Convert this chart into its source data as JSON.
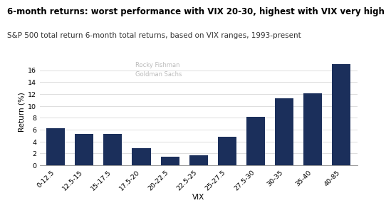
{
  "title": "6-month returns: worst performance with VIX 20-30, highest with VIX very high",
  "subtitle": "S&P 500 total return 6-month total returns, based on VIX ranges, 1993-present",
  "watermark_line1": "Rocky Fishman",
  "watermark_line2": "Goldman Sachs",
  "categories": [
    "0-12.5",
    "12.5-15",
    "15-17.5",
    "17.5-20",
    "20-22.5",
    "22.5-25",
    "25-27.5",
    "27.5-30",
    "30-35",
    "35-40",
    "40-85"
  ],
  "values": [
    6.2,
    5.35,
    5.35,
    2.9,
    1.45,
    1.65,
    4.8,
    8.2,
    11.3,
    12.1,
    17.0
  ],
  "bar_color": "#1b2f5b",
  "xlabel": "VIX",
  "ylabel": "Return (%)",
  "ylim": [
    0,
    18
  ],
  "yticks": [
    0,
    2,
    4,
    6,
    8,
    10,
    12,
    14,
    16
  ],
  "background_color": "#ffffff",
  "title_fontsize": 8.5,
  "subtitle_fontsize": 7.5,
  "axis_label_fontsize": 7.5,
  "tick_fontsize": 6.8,
  "watermark_fontsize": 6.0,
  "grid_color": "#dddddd"
}
